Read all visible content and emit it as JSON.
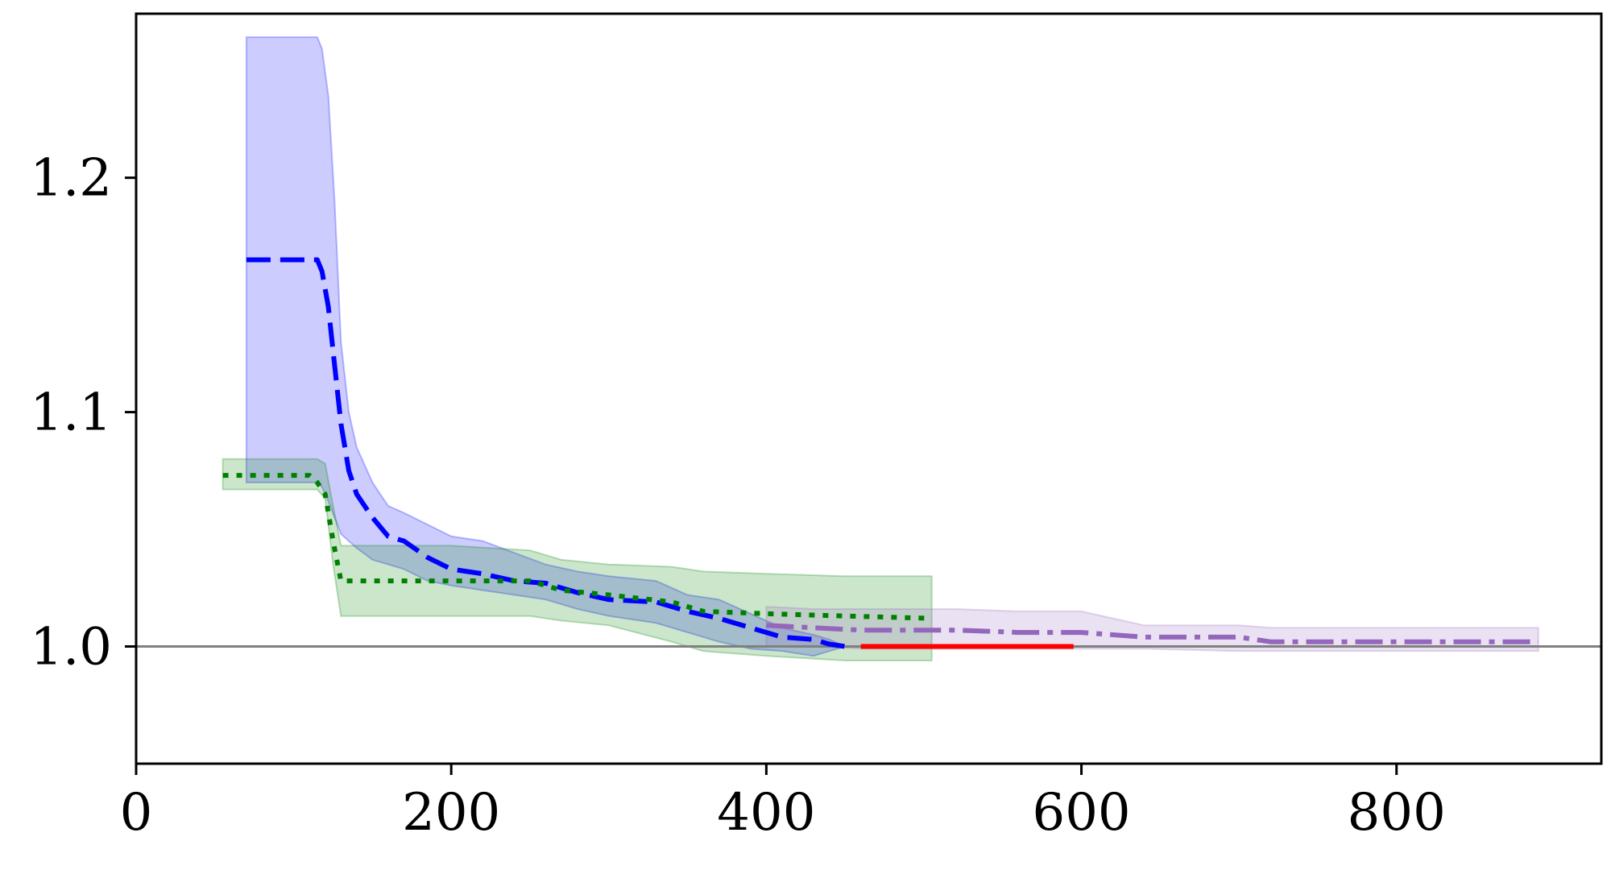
{
  "chart_data": {
    "type": "line",
    "title": "",
    "xlabel": "",
    "ylabel": "",
    "xlim": [
      0,
      930
    ],
    "ylim": [
      0.95,
      1.27
    ],
    "grid": false,
    "legend": "none",
    "x_ticks": [
      0,
      200,
      400,
      600,
      800
    ],
    "x_tick_labels": [
      "0",
      "200",
      "400",
      "600",
      "800"
    ],
    "y_ticks": [
      1.0,
      1.1,
      1.2
    ],
    "y_tick_labels": [
      "1.0",
      "1.1",
      "1.2"
    ],
    "reference_line": {
      "y": 1.0,
      "color": "#808080"
    },
    "series": [
      {
        "color": "#0000ff",
        "style": "dashed",
        "x": [
          70,
          115,
          118,
          122,
          126,
          130,
          135,
          140,
          150,
          160,
          170,
          185,
          200,
          220,
          240,
          260,
          280,
          300,
          330,
          350,
          370,
          390,
          410,
          430,
          440,
          450
        ],
        "y": [
          1.165,
          1.165,
          1.16,
          1.145,
          1.12,
          1.095,
          1.075,
          1.065,
          1.055,
          1.047,
          1.045,
          1.038,
          1.033,
          1.031,
          1.028,
          1.027,
          1.023,
          1.02,
          1.019,
          1.015,
          1.012,
          1.008,
          1.004,
          1.003,
          1.001,
          1.0
        ],
        "band_upper": [
          1.26,
          1.26,
          1.255,
          1.235,
          1.19,
          1.13,
          1.1,
          1.085,
          1.07,
          1.06,
          1.057,
          1.052,
          1.047,
          1.045,
          1.04,
          1.035,
          1.032,
          1.03,
          1.028,
          1.022,
          1.02,
          1.014,
          1.008,
          1.005,
          1.003,
          1.0
        ],
        "band_lower": [
          1.07,
          1.07,
          1.068,
          1.062,
          1.055,
          1.048,
          1.045,
          1.042,
          1.037,
          1.035,
          1.033,
          1.028,
          1.026,
          1.024,
          1.022,
          1.02,
          1.016,
          1.013,
          1.01,
          1.006,
          1.002,
          0.999,
          0.998,
          0.996,
          0.998,
          1.0
        ]
      },
      {
        "color": "#008000",
        "style": "dotted",
        "x": [
          55,
          110,
          115,
          120,
          125,
          130,
          200,
          250,
          270,
          300,
          340,
          360,
          400,
          450,
          505
        ],
        "y": [
          1.073,
          1.073,
          1.07,
          1.065,
          1.045,
          1.028,
          1.028,
          1.028,
          1.024,
          1.022,
          1.019,
          1.015,
          1.014,
          1.013,
          1.012
        ],
        "band_upper": [
          1.08,
          1.08,
          1.08,
          1.078,
          1.06,
          1.043,
          1.043,
          1.041,
          1.037,
          1.035,
          1.034,
          1.032,
          1.031,
          1.03,
          1.03
        ],
        "band_lower": [
          1.067,
          1.067,
          1.067,
          1.063,
          1.035,
          1.013,
          1.013,
          1.013,
          1.011,
          1.009,
          1.002,
          0.998,
          0.996,
          0.994,
          0.994
        ]
      },
      {
        "color": "#9467bd",
        "style": "dashdot",
        "x": [
          400,
          430,
          460,
          520,
          560,
          600,
          620,
          640,
          700,
          720,
          800,
          890
        ],
        "y": [
          1.009,
          1.008,
          1.007,
          1.007,
          1.006,
          1.006,
          1.005,
          1.004,
          1.004,
          1.002,
          1.002,
          1.002
        ],
        "band_upper": [
          1.017,
          1.016,
          1.016,
          1.016,
          1.015,
          1.015,
          1.012,
          1.009,
          1.009,
          1.008,
          1.008,
          1.008
        ],
        "band_lower": [
          1.0,
          1.0,
          0.999,
          0.999,
          0.999,
          0.999,
          0.999,
          0.999,
          0.998,
          0.998,
          0.998,
          0.998
        ]
      },
      {
        "color": "#ff0000",
        "style": "solid",
        "x": [
          460,
          595
        ],
        "y": [
          1.0,
          1.0
        ]
      }
    ]
  }
}
